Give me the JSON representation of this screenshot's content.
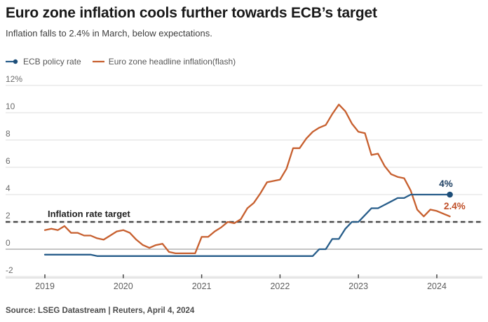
{
  "header": {
    "title": "Euro zone inflation cools further towards ECB’s target",
    "subtitle": "Inflation falls to 2.4% in March, below expectations."
  },
  "legend": [
    {
      "label": "ECB policy rate",
      "color": "#275d8a",
      "dot_color": "#1d4e79"
    },
    {
      "label": "Euro zone headline inflation(flash)",
      "color": "#c75f2e"
    }
  ],
  "annotations": {
    "target_label": "Inflation rate target",
    "policy_end_label": "4%",
    "inflation_end_label": "2.4%"
  },
  "footer": {
    "source": "Source: LSEG Datastream | Reuters, April 4, 2024"
  },
  "colors": {
    "policy_blue": "#275d8a",
    "policy_dot": "#1d4e79",
    "policy_label": "#1c3e61",
    "inflation_orange": "#c75f2e",
    "inflation_label": "#bf4e27",
    "target_dash": "#4a4a4a",
    "gridline": "#dcdcdc",
    "zero_line": "#8a8a8a",
    "axis_line": "#c9c9c9",
    "axis_tick": "#444444"
  },
  "chart_data": {
    "type": "line",
    "title": "Euro zone inflation cools further towards ECB’s target",
    "frequency": "monthly",
    "x_start": "2019-01",
    "x_end": "2024-03",
    "x_tick_labels": [
      "2019",
      "2020",
      "2021",
      "2022",
      "2023",
      "2024"
    ],
    "y_ticks": [
      12,
      10,
      8,
      6,
      4,
      2,
      0,
      -2
    ],
    "y_tick_labels": [
      "12%",
      "10",
      "8",
      "6",
      "4",
      "2",
      "0",
      "-2"
    ],
    "ylim": [
      -2.6,
      12.9
    ],
    "grid": true,
    "legend_position": "top-left",
    "target_line": {
      "value": 2,
      "style": "dashed",
      "label": "Inflation rate target"
    },
    "series": [
      {
        "name": "ECB policy rate",
        "color": "#275d8a",
        "end_marker": true,
        "marker_color": "#1d4e79",
        "end_label": "4%",
        "values": [
          -0.4,
          -0.4,
          -0.4,
          -0.4,
          -0.4,
          -0.4,
          -0.4,
          -0.4,
          -0.5,
          -0.5,
          -0.5,
          -0.5,
          -0.5,
          -0.5,
          -0.5,
          -0.5,
          -0.5,
          -0.5,
          -0.5,
          -0.5,
          -0.5,
          -0.5,
          -0.5,
          -0.5,
          -0.5,
          -0.5,
          -0.5,
          -0.5,
          -0.5,
          -0.5,
          -0.5,
          -0.5,
          -0.5,
          -0.5,
          -0.5,
          -0.5,
          -0.5,
          -0.5,
          -0.5,
          -0.5,
          -0.5,
          -0.5,
          0.0,
          0.0,
          0.75,
          0.75,
          1.5,
          2.0,
          2.0,
          2.5,
          3.0,
          3.0,
          3.25,
          3.5,
          3.75,
          3.75,
          4.0,
          4.0,
          4.0,
          4.0,
          4.0,
          4.0,
          4.0
        ]
      },
      {
        "name": "Euro zone headline inflation(flash)",
        "color": "#c75f2e",
        "end_marker": false,
        "end_label": "2.4%",
        "values": [
          1.4,
          1.5,
          1.4,
          1.7,
          1.2,
          1.2,
          1.0,
          1.0,
          0.8,
          0.7,
          1.0,
          1.3,
          1.4,
          1.2,
          0.7,
          0.3,
          0.1,
          0.3,
          0.4,
          -0.2,
          -0.3,
          -0.3,
          -0.3,
          -0.3,
          0.9,
          0.9,
          1.3,
          1.6,
          2.0,
          1.9,
          2.2,
          3.0,
          3.4,
          4.1,
          4.9,
          5.0,
          5.1,
          5.9,
          7.4,
          7.4,
          8.1,
          8.6,
          8.9,
          9.1,
          9.9,
          10.6,
          10.1,
          9.2,
          8.6,
          8.5,
          6.9,
          7.0,
          6.1,
          5.5,
          5.3,
          5.2,
          4.3,
          2.9,
          2.4,
          2.9,
          2.8,
          2.6,
          2.4
        ]
      }
    ]
  }
}
